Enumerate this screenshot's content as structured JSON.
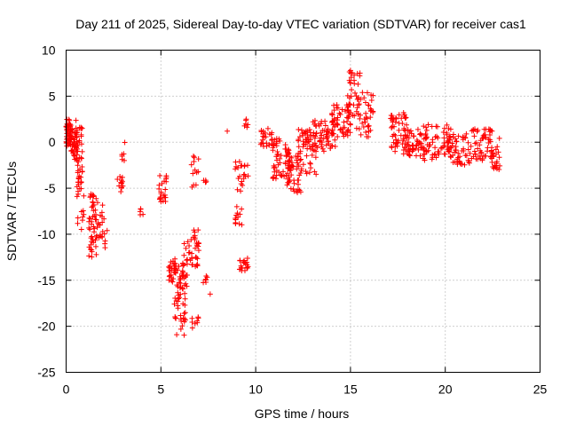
{
  "chart_data": {
    "type": "scatter",
    "title": "Day 211 of 2025, Sidereal Day-to-day VTEC variation (SDTVAR) for receiver cas1",
    "xlabel": "GPS time / hours",
    "ylabel": "SDTVAR / TECUs",
    "xlim": [
      0,
      25
    ],
    "ylim": [
      -25,
      10
    ],
    "xticks": [
      "0",
      "5",
      "10",
      "15",
      "20",
      "25"
    ],
    "yticks": [
      "10",
      "5",
      "0",
      "-5",
      "-10",
      "-15",
      "-20",
      "-25"
    ],
    "grid": true,
    "marker": "plus",
    "color": "#ff0000",
    "clusters": [
      {
        "x": [
          0.0,
          0.25
        ],
        "y": [
          -0.5,
          2.5
        ],
        "n": 45
      },
      {
        "x": [
          0.25,
          0.6
        ],
        "y": [
          -2.0,
          1.5
        ],
        "n": 45
      },
      {
        "x": [
          0.5,
          0.9
        ],
        "y": [
          -6.0,
          2.5
        ],
        "n": 40
      },
      {
        "x": [
          0.6,
          0.95
        ],
        "y": [
          -9.5,
          -3.5
        ],
        "n": 15
      },
      {
        "x": [
          1.2,
          1.6
        ],
        "y": [
          -12.5,
          -5.5
        ],
        "n": 45
      },
      {
        "x": [
          1.6,
          2.0
        ],
        "y": [
          -10.5,
          -6.0
        ],
        "n": 18
      },
      {
        "x": [
          2.0,
          2.2
        ],
        "y": [
          -11.5,
          -9.5
        ],
        "n": 5
      },
      {
        "x": [
          2.7,
          3.0
        ],
        "y": [
          -5.5,
          -3.5
        ],
        "n": 12
      },
      {
        "x": [
          2.9,
          3.1
        ],
        "y": [
          -2.0,
          0.0
        ],
        "n": 6
      },
      {
        "x": [
          3.9,
          4.1
        ],
        "y": [
          -8.0,
          -7.0
        ],
        "n": 5
      },
      {
        "x": [
          4.9,
          5.3
        ],
        "y": [
          -6.5,
          -3.5
        ],
        "n": 22
      },
      {
        "x": [
          5.4,
          5.8
        ],
        "y": [
          -15.5,
          -12.5
        ],
        "n": 25
      },
      {
        "x": [
          5.7,
          6.3
        ],
        "y": [
          -21.0,
          -13.0
        ],
        "n": 55
      },
      {
        "x": [
          6.1,
          6.5
        ],
        "y": [
          -16.0,
          -10.5
        ],
        "n": 20
      },
      {
        "x": [
          6.5,
          7.0
        ],
        "y": [
          -13.5,
          -9.5
        ],
        "n": 30
      },
      {
        "x": [
          6.6,
          7.0
        ],
        "y": [
          -20.5,
          -19.0
        ],
        "n": 8
      },
      {
        "x": [
          6.6,
          7.0
        ],
        "y": [
          -5.0,
          -1.5
        ],
        "n": 12
      },
      {
        "x": [
          7.2,
          7.5
        ],
        "y": [
          -15.5,
          -14.5
        ],
        "n": 6
      },
      {
        "x": [
          7.2,
          7.4
        ],
        "y": [
          -4.5,
          -4.0
        ],
        "n": 4
      },
      {
        "x": [
          8.9,
          9.3
        ],
        "y": [
          -9.0,
          -7.0
        ],
        "n": 12
      },
      {
        "x": [
          8.9,
          9.3
        ],
        "y": [
          -5.5,
          -2.0
        ],
        "n": 12
      },
      {
        "x": [
          9.1,
          9.6
        ],
        "y": [
          -14.0,
          -12.5
        ],
        "n": 20
      },
      {
        "x": [
          9.2,
          9.6
        ],
        "y": [
          -4.0,
          -2.5
        ],
        "n": 10
      },
      {
        "x": [
          9.4,
          9.6
        ],
        "y": [
          1.0,
          2.5
        ],
        "n": 5
      },
      {
        "x": [
          10.2,
          11.0
        ],
        "y": [
          -0.5,
          1.5
        ],
        "n": 25
      },
      {
        "x": [
          10.8,
          11.8
        ],
        "y": [
          -4.0,
          0.5
        ],
        "n": 45
      },
      {
        "x": [
          11.6,
          12.4
        ],
        "y": [
          -5.5,
          -1.0
        ],
        "n": 55
      },
      {
        "x": [
          12.2,
          13.2
        ],
        "y": [
          -3.5,
          1.5
        ],
        "n": 60
      },
      {
        "x": [
          13.0,
          14.2
        ],
        "y": [
          -1.0,
          2.5
        ],
        "n": 60
      },
      {
        "x": [
          14.0,
          15.0
        ],
        "y": [
          0.5,
          4.5
        ],
        "n": 50
      },
      {
        "x": [
          14.8,
          15.5
        ],
        "y": [
          2.0,
          7.8
        ],
        "n": 35
      },
      {
        "x": [
          15.3,
          16.2
        ],
        "y": [
          0.5,
          5.5
        ],
        "n": 40
      },
      {
        "x": [
          17.1,
          18.0
        ],
        "y": [
          -1.0,
          3.0
        ],
        "n": 50
      },
      {
        "x": [
          17.8,
          19.0
        ],
        "y": [
          -1.5,
          1.5
        ],
        "n": 60
      },
      {
        "x": [
          18.8,
          20.3
        ],
        "y": [
          -2.0,
          2.0
        ],
        "n": 60
      },
      {
        "x": [
          20.1,
          21.3
        ],
        "y": [
          -2.5,
          1.0
        ],
        "n": 55
      },
      {
        "x": [
          21.2,
          22.5
        ],
        "y": [
          -2.0,
          1.5
        ],
        "n": 55
      },
      {
        "x": [
          22.4,
          22.9
        ],
        "y": [
          -3.0,
          0.5
        ],
        "n": 25
      }
    ],
    "outliers": [
      {
        "x": 8.5,
        "y": 1.2
      },
      {
        "x": 9.5,
        "y": 2.5
      },
      {
        "x": 7.6,
        "y": -16.5
      },
      {
        "x": 15.0,
        "y": 7.8
      },
      {
        "x": 15.5,
        "y": 7.5
      },
      {
        "x": 10.5,
        "y": 1.0
      },
      {
        "x": 17.8,
        "y": 3.2
      }
    ]
  }
}
